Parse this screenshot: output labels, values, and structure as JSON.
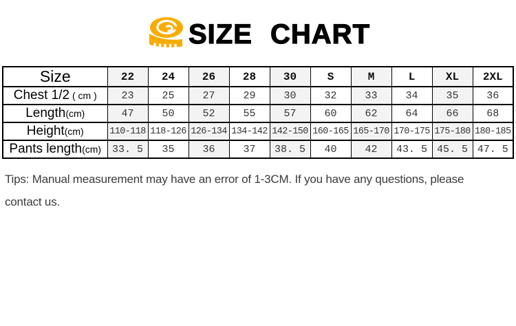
{
  "title": {
    "text": "SIZE CHART",
    "icon": "measuring-tape-icon",
    "icon_color": "#F9AC00"
  },
  "table": {
    "header_label": "Size",
    "columns": [
      "22",
      "24",
      "26",
      "28",
      "30",
      "S",
      "M",
      "L",
      "XL",
      "2XL"
    ],
    "rows": [
      {
        "label": "Chest 1/2",
        "unit": " ( cm )",
        "values": [
          "23",
          "25",
          "27",
          "29",
          "30",
          "32",
          "33",
          "34",
          "35",
          "36"
        ]
      },
      {
        "label": "Length",
        "unit": "(cm)",
        "values": [
          "47",
          "50",
          "52",
          "55",
          "57",
          "60",
          "62",
          "64",
          "66",
          "68"
        ]
      },
      {
        "label": "Height",
        "unit": "(cm)",
        "values": [
          "110-118",
          "118-126",
          "126-134",
          "134-142",
          "142-150",
          "160-165",
          "165-170",
          "170-175",
          "175-180",
          "180-185"
        ]
      },
      {
        "label": "Pants length",
        "unit": "(cm)",
        "values": [
          "33. 5",
          "35",
          "36",
          "37",
          "38. 5",
          "40",
          "42",
          "43. 5",
          "45. 5",
          "47. 5"
        ]
      }
    ],
    "shaded_color": "#f3f3f3",
    "border_color": "#000000"
  },
  "tips": {
    "lines": [
      "Tips: Manual measurement may have an error of 1-3CM. If you have any questions, please",
      "contact us."
    ]
  }
}
